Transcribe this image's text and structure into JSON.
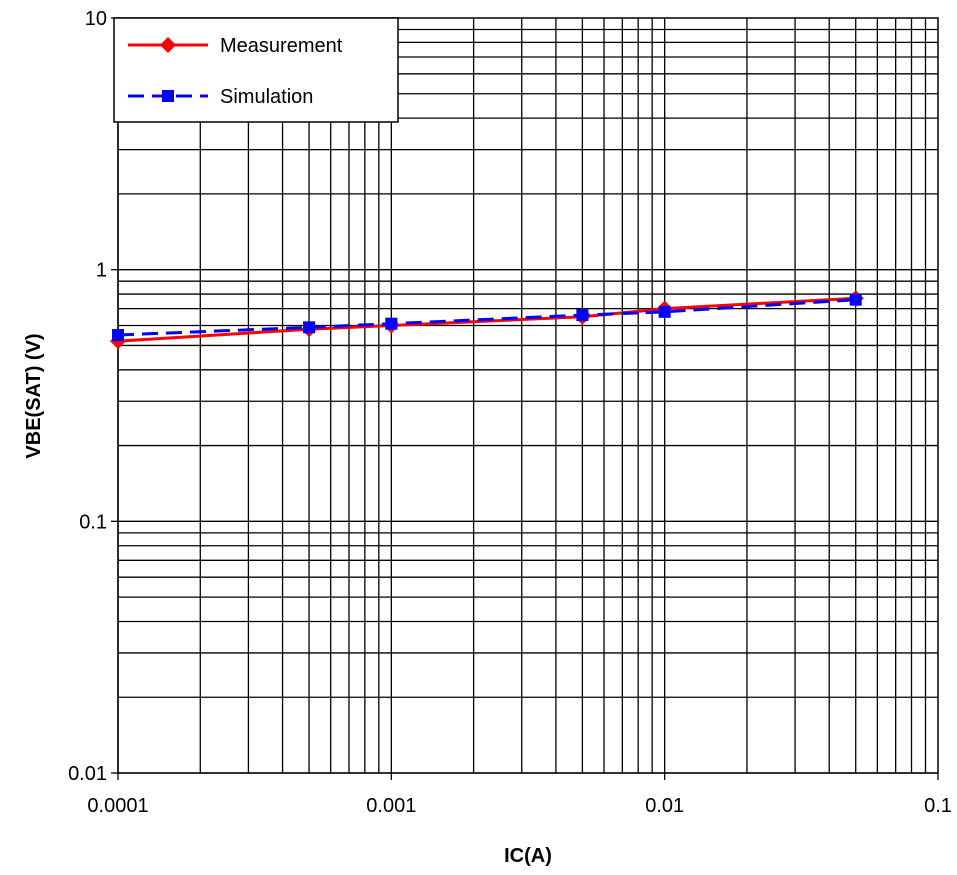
{
  "chart_data": {
    "type": "line",
    "title": "",
    "xlabel": "IC(A)",
    "ylabel": "VBE(SAT) (V)",
    "xscale": "log",
    "yscale": "log",
    "xlim": [
      0.0001,
      0.1
    ],
    "ylim": [
      0.01,
      10
    ],
    "x_ticks": [
      "0.0001",
      "0.001",
      "0.01",
      "0.1"
    ],
    "y_ticks": [
      "0.01",
      "0.1",
      "1",
      "10"
    ],
    "grid": true,
    "legend_position": "top-left",
    "series": [
      {
        "name": "Measurement",
        "color": "#ff0000",
        "line_style": "solid",
        "marker": "diamond",
        "x": [
          0.0001,
          0.0005,
          0.001,
          0.005,
          0.01,
          0.05
        ],
        "y": [
          0.52,
          0.58,
          0.6,
          0.65,
          0.7,
          0.77
        ]
      },
      {
        "name": "Simulation",
        "color": "#0000ff",
        "line_style": "dashed",
        "marker": "square",
        "x": [
          0.0001,
          0.0005,
          0.001,
          0.005,
          0.01,
          0.05
        ],
        "y": [
          0.55,
          0.59,
          0.61,
          0.66,
          0.68,
          0.76
        ]
      }
    ]
  }
}
